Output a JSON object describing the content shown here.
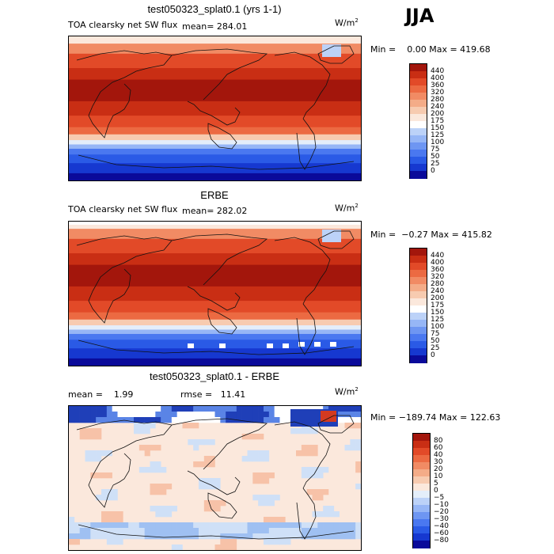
{
  "season": "JJA",
  "units": {
    "base": "W/m",
    "exp": "2"
  },
  "panels": [
    {
      "title": "test050323_splat0.1 (yrs 1-1)",
      "field": "TOA clearsky net SW flux",
      "stat1": "mean= 284.01",
      "stat2": "",
      "minmax": "Min =    0.00 Max = 419.68",
      "map": {
        "type": "model",
        "colors": [
          "#0a0a9a",
          "#1638d0",
          "#2a5ae6",
          "#4a78f0",
          "#6e96f2",
          "#96b6f6",
          "#bcd2f8",
          "#e4eefa",
          "#fbe8dc",
          "#f7cbb0",
          "#f4ac88",
          "#f18b64",
          "#ec6a42",
          "#e24a28",
          "#c92e14",
          "#a3160c"
        ]
      },
      "colorbar": {
        "labels": [
          "440",
          "400",
          "360",
          "320",
          "280",
          "240",
          "200",
          "175",
          "150",
          "125",
          "100",
          "75",
          "50",
          "25",
          "0"
        ],
        "colors": [
          "#a3160c",
          "#c92e14",
          "#e24a28",
          "#ec6a42",
          "#f18b64",
          "#f4ac88",
          "#f7cbb0",
          "#fbe8dc",
          "#ffffff",
          "#bcd2f8",
          "#96b6f6",
          "#6e96f2",
          "#4a78f0",
          "#2a5ae6",
          "#1638d0",
          "#0a0a9a"
        ]
      }
    },
    {
      "title": "ERBE",
      "field": "TOA clearsky net SW flux",
      "stat1": "mean= 282.02",
      "stat2": "",
      "minmax": "Min =  −0.27 Max = 415.82",
      "map": {
        "type": "obs",
        "colors": [
          "#0a0a9a",
          "#1638d0",
          "#2a5ae6",
          "#4a78f0",
          "#6e96f2",
          "#96b6f6",
          "#bcd2f8",
          "#e4eefa",
          "#fbe8dc",
          "#f7cbb0",
          "#f4ac88",
          "#f18b64",
          "#ec6a42",
          "#e24a28",
          "#c92e14",
          "#a3160c"
        ]
      },
      "colorbar": {
        "labels": [
          "440",
          "400",
          "360",
          "320",
          "280",
          "240",
          "200",
          "175",
          "150",
          "125",
          "100",
          "75",
          "50",
          "25",
          "0"
        ],
        "colors": [
          "#a3160c",
          "#c92e14",
          "#e24a28",
          "#ec6a42",
          "#f18b64",
          "#f4ac88",
          "#f7cbb0",
          "#fbe8dc",
          "#ffffff",
          "#bcd2f8",
          "#96b6f6",
          "#6e96f2",
          "#4a78f0",
          "#2a5ae6",
          "#1638d0",
          "#0a0a9a"
        ]
      }
    },
    {
      "title": "test050323_splat0.1 - ERBE",
      "field": "mean =    1.99",
      "stat1": "",
      "stat2": "rmse =   11.41",
      "minmax": "Min = −189.74 Max = 122.63",
      "map": {
        "type": "diff",
        "colors": [
          "#ffffff",
          "#fde3d4",
          "#f7c2a8",
          "#cfe0f7",
          "#9fc0f2",
          "#5a84e6",
          "#1f3fb8",
          "#ee7a58",
          "#d43a20"
        ]
      },
      "colorbar": {
        "labels": [
          "80",
          "60",
          "40",
          "30",
          "20",
          "10",
          "5",
          "0",
          "−5",
          "−10",
          "−20",
          "−30",
          "−40",
          "−60",
          "−80"
        ],
        "colors": [
          "#a3160c",
          "#c92e14",
          "#e24a28",
          "#ec6a42",
          "#f18b64",
          "#f4ac88",
          "#f7cbb0",
          "#fbe8dc",
          "#e4eefa",
          "#bcd2f8",
          "#96b6f6",
          "#6e96f2",
          "#4a78f0",
          "#2a5ae6",
          "#1638d0",
          "#0a0a9a"
        ]
      }
    }
  ]
}
